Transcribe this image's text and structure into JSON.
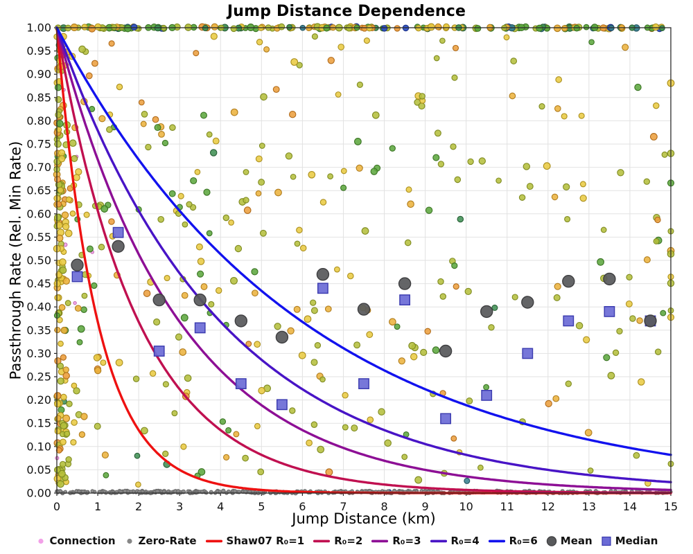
{
  "chart_data": {
    "type": "scatter",
    "title": "Jump Distance Dependence",
    "xlabel": "Jump Distance (km)",
    "ylabel": "Passthrough Rate (Rel. Min Rate)",
    "xlim": [
      0,
      15
    ],
    "ylim": [
      0,
      1
    ],
    "xticks": {
      "min": 0,
      "max": 15,
      "step": 1,
      "decimals": 0
    },
    "yticks": {
      "min": 0,
      "max": 1,
      "step": 0.05,
      "decimals": 2
    },
    "grid": true,
    "legend_position": "bottom-center",
    "style": {
      "grid_color": "#e2e2e2",
      "border_color": "#2b2b2b",
      "mean_fill": "#58595b",
      "mean_stroke": "#3e3e40",
      "median_fill": "#6b6bd6",
      "median_stroke": "#3939ae"
    },
    "curves": {
      "model": "y = exp(-x / R0)",
      "series": [
        {
          "name": "Shaw07 R₀=1",
          "R0": 1,
          "color": "#ee1111"
        },
        {
          "name": "R₀=2",
          "R0": 2,
          "color": "#c01050"
        },
        {
          "name": "R₀=3",
          "R0": 3,
          "color": "#8d0f95"
        },
        {
          "name": "R₀=4",
          "R0": 4,
          "color": "#4814c6"
        },
        {
          "name": "R₀=6",
          "R0": 6,
          "color": "#1212ee"
        }
      ]
    },
    "mean": {
      "name": "Mean",
      "x": [
        0.5,
        1.5,
        2.5,
        3.5,
        4.5,
        5.5,
        6.5,
        7.5,
        8.5,
        9.5,
        10.5,
        11.5,
        12.5,
        13.5,
        14.5
      ],
      "y": [
        0.49,
        0.53,
        0.415,
        0.415,
        0.37,
        0.335,
        0.47,
        0.395,
        0.45,
        0.305,
        0.39,
        0.41,
        0.455,
        0.46,
        0.37
      ]
    },
    "median": {
      "name": "Median",
      "x": [
        0.5,
        1.5,
        2.5,
        3.5,
        4.5,
        5.5,
        6.5,
        7.5,
        8.5,
        9.5,
        10.5,
        11.5,
        12.5,
        13.5,
        14.5
      ],
      "y": [
        0.465,
        0.56,
        0.305,
        0.355,
        0.235,
        0.19,
        0.44,
        0.235,
        0.415,
        0.16,
        0.21,
        0.3,
        0.37,
        0.39,
        0.37
      ]
    },
    "scatter": {
      "description": "dense random point cloud: colored rate points over full field, heavy cluster at x~0, saturation band at y=1.00, gray zero-rate band at y=0.00",
      "seed": 7,
      "palette": {
        "olive": {
          "fill": "#b4bf3c",
          "stroke": "#7e8a20"
        },
        "yellow": {
          "fill": "#e9ca41",
          "stroke": "#ab8f1e"
        },
        "gold": {
          "fill": "#ecb23d",
          "stroke": "#b07c1c"
        },
        "orange": {
          "fill": "#ec9e3d",
          "stroke": "#b06a1a"
        },
        "green": {
          "fill": "#5ca73d",
          "stroke": "#3a7423"
        },
        "dkgreen": {
          "fill": "#3f9054",
          "stroke": "#285f36"
        },
        "teal": {
          "fill": "#377f90",
          "stroke": "#20525e"
        },
        "blue": {
          "fill": "#2d4fc4",
          "stroke": "#1b3288"
        },
        "gray": {
          "fill": "#878787",
          "stroke": "#6b6b6b"
        },
        "pink": {
          "fill": "#f2a0e8",
          "stroke": "#c46fb4"
        }
      },
      "regions": [
        {
          "name": "connection",
          "n": 6,
          "x_dist": "exp_zero",
          "x_scale": 0.6,
          "y_dist": "uniform",
          "r": 2.3,
          "alpha": 0.9,
          "weights": {
            "pink": 100
          }
        },
        {
          "name": "zero-rate-band",
          "n": 400,
          "x_dist": "uniform",
          "y_dist": "zero",
          "r": 2.5,
          "alpha": 0.95,
          "weights": {
            "gray": 98.5,
            "blue": 1.5
          }
        },
        {
          "name": "rate-point",
          "n": 335,
          "x_dist": "mix",
          "mix_uniform": 0.45,
          "x_scale": 5.5,
          "y_dist": "uniform",
          "r": 4.3,
          "alpha": 0.87,
          "weights": {
            "olive": 36,
            "yellow": 24,
            "gold": 12,
            "green": 15,
            "orange": 9,
            "dkgreen": 3,
            "teal": 1
          }
        },
        {
          "name": "near-zero-cluster",
          "n": 165,
          "x_dist": "exp_zero",
          "x_scale": 0.13,
          "y_dist": "uniform",
          "r": 4.3,
          "alpha": 0.9,
          "weights": {
            "olive": 34,
            "yellow": 28,
            "gold": 16,
            "orange": 13,
            "green": 9
          }
        },
        {
          "name": "saturated-band",
          "n": 180,
          "x_dist": "uniform",
          "y_dist": "top",
          "r": 4.3,
          "alpha": 0.95,
          "weights": {
            "olive": 20,
            "yellow": 18,
            "gold": 12,
            "green": 19,
            "orange": 10,
            "dkgreen": 7,
            "teal": 7,
            "blue": 7
          }
        }
      ]
    },
    "legend": [
      {
        "type": "dot",
        "color": "#f2a0e8",
        "label": "Connection"
      },
      {
        "type": "dot",
        "color": "#878787",
        "label": "Zero-Rate"
      },
      {
        "type": "line",
        "color": "#ee1111",
        "label": "Shaw07 R₀=1"
      },
      {
        "type": "line",
        "color": "#c01050",
        "label": "R₀=2"
      },
      {
        "type": "line",
        "color": "#8d0f95",
        "label": "R₀=3"
      },
      {
        "type": "line",
        "color": "#4814c6",
        "label": "R₀=4"
      },
      {
        "type": "line",
        "color": "#1212ee",
        "label": "R₀=6"
      },
      {
        "type": "circle",
        "color": "#58595b",
        "label": "Mean"
      },
      {
        "type": "square",
        "color": "#6b6bd6",
        "label": "Median"
      }
    ]
  }
}
